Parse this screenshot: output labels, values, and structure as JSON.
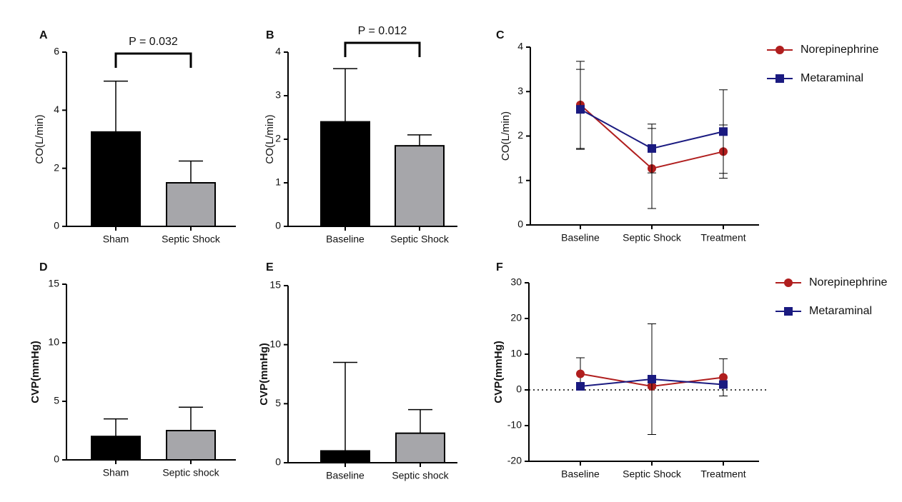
{
  "chart_data": [
    {
      "type": "bar",
      "panel_label": "A",
      "ylabel": "CO(L/min)",
      "categories": [
        "Sham",
        "Septic Shock"
      ],
      "values": [
        3.25,
        1.5
      ],
      "errors": [
        1.75,
        0.75
      ],
      "colors": [
        "#000000",
        "#a6a6aa"
      ],
      "ylim": [
        0,
        6
      ],
      "yticks": [
        0,
        2,
        4,
        6
      ],
      "annotation": "P = 0.032"
    },
    {
      "type": "bar",
      "panel_label": "B",
      "ylabel": "CO(L/min)",
      "categories": [
        "Baseline",
        "Septic Shock"
      ],
      "values": [
        2.4,
        1.85
      ],
      "errors": [
        1.22,
        0.25
      ],
      "colors": [
        "#000000",
        "#a6a6aa"
      ],
      "ylim": [
        0,
        4
      ],
      "yticks": [
        0,
        1,
        2,
        3,
        4
      ],
      "annotation": "P = 0.012"
    },
    {
      "type": "line",
      "panel_label": "C",
      "ylabel": "CO(L/min)",
      "categories": [
        "Baseline",
        "Septic Shock",
        "Treatment"
      ],
      "series": [
        {
          "name": "Norepinephrine",
          "color": "#b01e1e",
          "marker": "circle",
          "values": [
            2.7,
            1.27,
            1.65
          ],
          "errors": [
            0.98,
            0.9,
            0.6
          ]
        },
        {
          "name": "Metaraminal",
          "color": "#1a1a80",
          "marker": "square",
          "values": [
            2.6,
            1.72,
            2.1
          ],
          "errors": [
            0.9,
            0.55,
            0.94
          ]
        }
      ],
      "ylim": [
        0,
        4
      ],
      "yticks": [
        0,
        1,
        2,
        3,
        4
      ],
      "zero_line": false
    },
    {
      "type": "bar",
      "panel_label": "D",
      "ylabel": "CVP(mmHg)",
      "categories": [
        "Sham",
        "Septic shock"
      ],
      "values": [
        2.0,
        2.5
      ],
      "errors": [
        1.5,
        2.0
      ],
      "colors": [
        "#000000",
        "#a6a6aa"
      ],
      "ylim": [
        0,
        15
      ],
      "yticks": [
        0,
        5,
        10,
        15
      ]
    },
    {
      "type": "bar",
      "panel_label": "E",
      "ylabel": "CVP(mmHg)",
      "categories": [
        "Baseline",
        "Septic shock"
      ],
      "values": [
        1.0,
        2.5
      ],
      "errors": [
        7.5,
        2.0
      ],
      "colors": [
        "#000000",
        "#a6a6aa"
      ],
      "ylim": [
        0,
        15
      ],
      "yticks": [
        0,
        5,
        10,
        15
      ]
    },
    {
      "type": "line",
      "panel_label": "F",
      "ylabel": "CVP(mmHg)",
      "categories": [
        "Baseline",
        "Septic Shock",
        "Treatment"
      ],
      "series": [
        {
          "name": "Norepinephrine",
          "color": "#b01e1e",
          "marker": "circle",
          "values": [
            4.5,
            1.0,
            3.5
          ],
          "errors": [
            4.5,
            0.5,
            5.2
          ]
        },
        {
          "name": "Metaraminal",
          "color": "#1a1a80",
          "marker": "square",
          "values": [
            1.0,
            3.0,
            1.5
          ],
          "errors": [
            0.5,
            15.5,
            0.8
          ]
        }
      ],
      "ylim": [
        -20,
        30
      ],
      "yticks": [
        -20,
        -10,
        0,
        10,
        20,
        30
      ],
      "zero_line": true
    }
  ]
}
